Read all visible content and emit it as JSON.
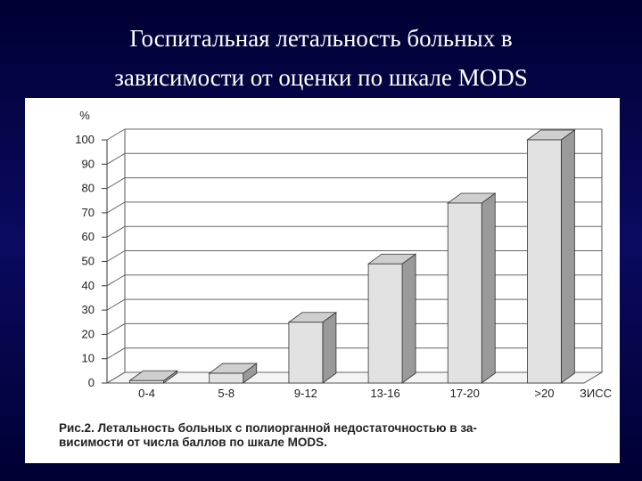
{
  "chart_data": {
    "type": "bar3d",
    "title": [
      "Госпитальная летальность больных в",
      "зависимости от оценки по шкале MODS"
    ],
    "y_label": "%",
    "x_end_label": "ЗИСС",
    "caption": [
      "Рис.2. Летальность больных с полиорганной недостаточностью в за-",
      "висимости от числа баллов по шкале MODS."
    ],
    "categories": [
      "0-4",
      "5-8",
      "9-12",
      "13-16",
      "17-20",
      ">20"
    ],
    "values": [
      1,
      4,
      25,
      49,
      74,
      100
    ],
    "color": "#e2e2e2",
    "ylim": [
      0,
      100
    ],
    "yticks": [
      0,
      10,
      20,
      30,
      40,
      50,
      60,
      70,
      80,
      90,
      100
    ],
    "grid": true
  }
}
